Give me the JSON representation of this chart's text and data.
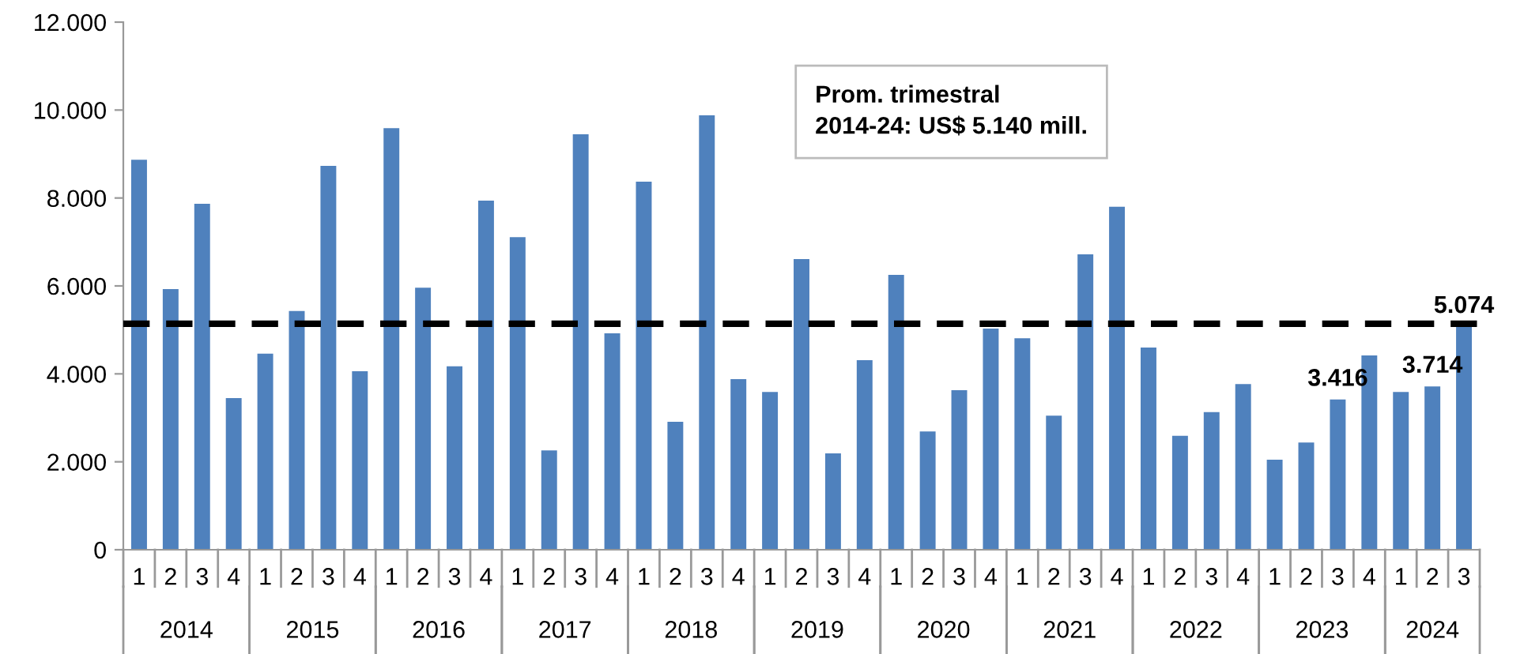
{
  "chart_data": {
    "type": "bar",
    "color": "#4f81bd",
    "categories": [
      "1",
      "2",
      "3",
      "4",
      "1",
      "2",
      "3",
      "4",
      "1",
      "2",
      "3",
      "4",
      "1",
      "2",
      "3",
      "4",
      "1",
      "2",
      "3",
      "4",
      "1",
      "2",
      "3",
      "4",
      "1",
      "2",
      "3",
      "4",
      "1",
      "2",
      "3",
      "4",
      "1",
      "2",
      "3",
      "4",
      "1",
      "2",
      "3",
      "4",
      "1",
      "2",
      "3"
    ],
    "values": [
      8870,
      5930,
      7870,
      3450,
      4460,
      5430,
      8730,
      4060,
      9590,
      5960,
      4170,
      7940,
      7110,
      2260,
      9450,
      4920,
      8370,
      2910,
      9880,
      3880,
      3590,
      6610,
      2190,
      4310,
      6250,
      2690,
      3630,
      5030,
      4810,
      3050,
      6720,
      7800,
      4600,
      2590,
      3130,
      3770,
      2050,
      2440,
      3416,
      4420,
      3590,
      3714,
      5074
    ],
    "value_labels": [
      null,
      null,
      null,
      null,
      null,
      null,
      null,
      null,
      null,
      null,
      null,
      null,
      null,
      null,
      null,
      null,
      null,
      null,
      null,
      null,
      null,
      null,
      null,
      null,
      null,
      null,
      null,
      null,
      null,
      null,
      null,
      null,
      null,
      null,
      null,
      null,
      null,
      null,
      "3.416",
      null,
      null,
      "3.714",
      "5.074"
    ],
    "annotations": [
      "2014",
      "2015",
      "2016",
      "2017",
      "2018",
      "2019",
      "2020",
      "2021",
      "2022",
      "2023",
      "2024"
    ],
    "ylim": [
      0,
      12000
    ],
    "yticks": [
      {
        "value": 0,
        "label": "0"
      },
      {
        "value": 2000,
        "label": "2.000"
      },
      {
        "value": 4000,
        "label": "4.000"
      },
      {
        "value": 6000,
        "label": "6.000"
      },
      {
        "value": 8000,
        "label": "8.000"
      },
      {
        "value": 10000,
        "label": "10.000"
      },
      {
        "value": 12000,
        "label": "12.000"
      }
    ],
    "ref_lines": [
      {
        "axis": "y",
        "value": 5140,
        "label": "Prom. trimestral\n2014-24: US$ 5.140 mill.",
        "color": "#000000",
        "line_style": "dashed"
      }
    ],
    "grid": false,
    "legend": false
  }
}
